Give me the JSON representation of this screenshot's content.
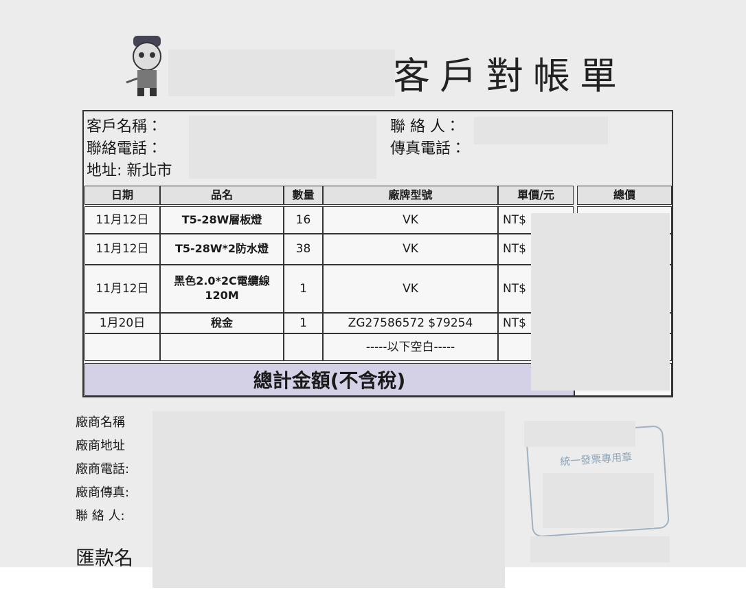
{
  "header": {
    "title": "客戶對帳單"
  },
  "customer": {
    "name_label": "客戶名稱：",
    "phone_label": "聯絡電話：",
    "address_label": "地址: 新北市",
    "contact_label": "聯 絡 人：",
    "fax_label": "傳真電話："
  },
  "table": {
    "headers": [
      "日期",
      "品名",
      "數量",
      "廠牌型號",
      "單價/元",
      "總價"
    ],
    "rows": [
      [
        "11月12日",
        "T5-28W層板燈",
        "16",
        "VK",
        "NT$"
      ],
      [
        "11月12日",
        "T5-28W*2防水燈",
        "38",
        "VK",
        "NT$"
      ],
      [
        "11月12日",
        "黑色2.0*2C電纜線 120M",
        "1",
        "VK",
        "NT$"
      ],
      [
        "1月20日",
        "稅金",
        "1",
        "ZG27586572 $79254",
        "NT$"
      ]
    ],
    "blank_note": "-----以下空白-----",
    "total_label": "總計金額(不含稅)"
  },
  "vendor": {
    "labels": [
      "廠商名稱",
      "廠商地址",
      "廠商電話:",
      "廠商傳真:",
      "聯 絡 人:"
    ],
    "remit_label": "匯款名"
  },
  "stamp": {
    "text": "統一發票專用章"
  }
}
